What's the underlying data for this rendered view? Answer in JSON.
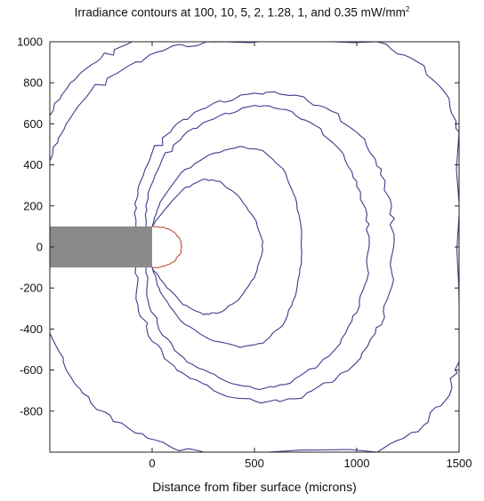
{
  "chart_data": {
    "type": "contour",
    "title": "Irradiance contours at 100, 10, 5, 2, 1.28, 1, and 0.35 mW/mm",
    "title_superscript": "2",
    "xlabel": "Distance from fiber surface (microns)",
    "ylabel": "",
    "xlim": [
      -500,
      1500
    ],
    "ylim": [
      -1000,
      1000
    ],
    "x_ticks": [
      0,
      500,
      1000,
      1500
    ],
    "x_tick_labels": [
      "0",
      "500",
      "1000",
      "1500"
    ],
    "y_ticks": [
      1000,
      800,
      600,
      400,
      200,
      0,
      -200,
      -400,
      -600,
      -800
    ],
    "y_tick_labels": [
      "1000",
      "800",
      "600",
      "400",
      "200",
      "0",
      "-200",
      "-400",
      "-600",
      "-800"
    ],
    "grid": false,
    "fiber": {
      "x_range": [
        -500,
        0
      ],
      "y_range": [
        -100,
        100
      ],
      "fill": "#8a8a8a"
    },
    "contours": [
      {
        "level": 100,
        "color": "#c0503c",
        "points": [
          [
            0,
            100
          ],
          [
            60,
            95
          ],
          [
            110,
            70
          ],
          [
            140,
            30
          ],
          [
            145,
            0
          ],
          [
            140,
            -30
          ],
          [
            110,
            -70
          ],
          [
            60,
            -95
          ],
          [
            0,
            -100
          ]
        ]
      },
      {
        "level": 10,
        "color": "#3c3c8c",
        "points": [
          [
            0,
            100
          ],
          [
            60,
            180
          ],
          [
            150,
            280
          ],
          [
            250,
            330
          ],
          [
            330,
            320
          ],
          [
            420,
            250
          ],
          [
            500,
            140
          ],
          [
            540,
            30
          ],
          [
            535,
            -40
          ],
          [
            500,
            -150
          ],
          [
            420,
            -260
          ],
          [
            330,
            -320
          ],
          [
            250,
            -330
          ],
          [
            150,
            -280
          ],
          [
            60,
            -180
          ],
          [
            0,
            -100
          ]
        ]
      },
      {
        "level": 5,
        "color": "#3c3c8c",
        "points": [
          [
            0,
            100
          ],
          [
            40,
            220
          ],
          [
            140,
            360
          ],
          [
            280,
            450
          ],
          [
            430,
            490
          ],
          [
            540,
            470
          ],
          [
            640,
            380
          ],
          [
            700,
            240
          ],
          [
            730,
            80
          ],
          [
            730,
            -80
          ],
          [
            700,
            -240
          ],
          [
            640,
            -380
          ],
          [
            540,
            -470
          ],
          [
            430,
            -490
          ],
          [
            280,
            -450
          ],
          [
            140,
            -360
          ],
          [
            40,
            -220
          ],
          [
            0,
            -100
          ]
        ]
      },
      {
        "level": 2,
        "color": "#3c3c8c",
        "points": [
          [
            -30,
            100
          ],
          [
            -20,
            260
          ],
          [
            50,
            430
          ],
          [
            170,
            560
          ],
          [
            330,
            640
          ],
          [
            500,
            690
          ],
          [
            650,
            670
          ],
          [
            800,
            590
          ],
          [
            920,
            470
          ],
          [
            1000,
            320
          ],
          [
            1050,
            160
          ],
          [
            1060,
            0
          ],
          [
            1050,
            -160
          ],
          [
            1000,
            -320
          ],
          [
            920,
            -470
          ],
          [
            800,
            -590
          ],
          [
            650,
            -670
          ],
          [
            500,
            -690
          ],
          [
            330,
            -640
          ],
          [
            170,
            -560
          ],
          [
            50,
            -430
          ],
          [
            -20,
            -260
          ],
          [
            -30,
            -100
          ]
        ]
      },
      {
        "level": 1.28,
        "color": "#3c3c8c",
        "points": [
          [
            -80,
            100
          ],
          [
            -70,
            280
          ],
          [
            0,
            460
          ],
          [
            120,
            600
          ],
          [
            300,
            700
          ],
          [
            500,
            750
          ],
          [
            700,
            740
          ],
          [
            880,
            660
          ],
          [
            1020,
            540
          ],
          [
            1120,
            380
          ],
          [
            1170,
            200
          ],
          [
            1180,
            0
          ],
          [
            1170,
            -200
          ],
          [
            1120,
            -380
          ],
          [
            1020,
            -540
          ],
          [
            880,
            -660
          ],
          [
            700,
            -740
          ],
          [
            500,
            -750
          ],
          [
            300,
            -700
          ],
          [
            120,
            -600
          ],
          [
            0,
            -460
          ],
          [
            -70,
            -280
          ],
          [
            -80,
            -100
          ]
        ]
      },
      {
        "level": 1,
        "color": "#3c3c8c",
        "points": [
          [
            -500,
            420
          ],
          [
            -420,
            600
          ],
          [
            -300,
            760
          ],
          [
            -120,
            880
          ],
          [
            100,
            980
          ],
          [
            350,
            1000
          ],
          [
            1100,
            1000
          ],
          [
            1300,
            900
          ],
          [
            1440,
            740
          ],
          [
            1500,
            560
          ],
          [
            1500,
            -560
          ],
          [
            1440,
            -740
          ],
          [
            1300,
            -900
          ],
          [
            1100,
            -1000
          ],
          [
            350,
            -1000
          ],
          [
            100,
            -980
          ],
          [
            -120,
            -880
          ],
          [
            -300,
            -760
          ],
          [
            -420,
            -600
          ],
          [
            -500,
            -420
          ]
        ]
      },
      {
        "level": 0.35,
        "color": "#3c3c8c",
        "points": [
          [
            -500,
            640
          ],
          [
            -400,
            800
          ],
          [
            -250,
            920
          ],
          [
            -100,
            1000
          ]
        ]
      }
    ]
  }
}
